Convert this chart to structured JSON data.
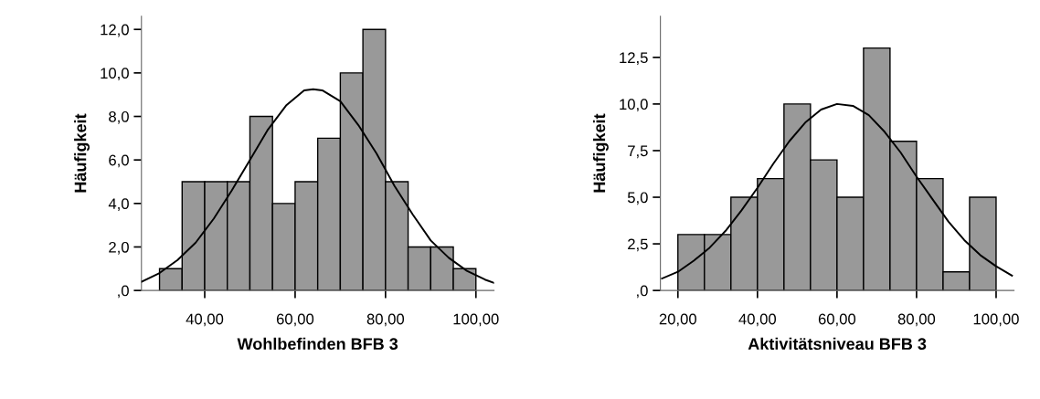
{
  "chart_data": [
    {
      "type": "histogram",
      "xlabel": "Wohlbefinden BFB 3",
      "ylabel": "Häufigkeit",
      "color": "#999999",
      "bins": [
        30,
        35,
        40,
        45,
        50,
        55,
        60,
        65,
        70,
        75,
        80,
        85,
        90,
        95,
        100
      ],
      "values": [
        1,
        5,
        5,
        5,
        8,
        4,
        5,
        7,
        10,
        12,
        5,
        2,
        2,
        1
      ],
      "series": [
        {
          "type": "line",
          "color": "#000000",
          "x": [
            26,
            30,
            34,
            38,
            42,
            46,
            50,
            54,
            58,
            62,
            64,
            66,
            70,
            74,
            78,
            82,
            86,
            90,
            94,
            98,
            102,
            104
          ],
          "values": [
            0.4,
            0.8,
            1.4,
            2.2,
            3.3,
            4.6,
            6.0,
            7.4,
            8.5,
            9.2,
            9.25,
            9.2,
            8.7,
            7.6,
            6.3,
            4.8,
            3.5,
            2.3,
            1.5,
            0.9,
            0.5,
            0.35
          ]
        }
      ],
      "xlim": [
        26,
        104
      ],
      "ylim": [
        0,
        12.6
      ],
      "xticks": [
        {
          "value": 40,
          "label": "40,00"
        },
        {
          "value": 60,
          "label": "60,00"
        },
        {
          "value": 80,
          "label": "80,00"
        },
        {
          "value": 100,
          "label": "100,00"
        }
      ],
      "yticks": [
        {
          "value": 0,
          "label": ",0"
        },
        {
          "value": 2,
          "label": "2,0"
        },
        {
          "value": 4,
          "label": "4,0"
        },
        {
          "value": 6,
          "label": "6,0"
        },
        {
          "value": 8,
          "label": "8,0"
        },
        {
          "value": 10,
          "label": "10,0"
        },
        {
          "value": 12,
          "label": "12,0"
        }
      ],
      "grid": false
    },
    {
      "type": "histogram",
      "xlabel": "Aktivitätsniveau BFB 3",
      "ylabel": "Häufigkeit",
      "color": "#999999",
      "bins": [
        20,
        26.67,
        33.33,
        40,
        46.67,
        53.33,
        60,
        66.67,
        73.33,
        80,
        86.67,
        93.33,
        100
      ],
      "values": [
        3,
        3,
        5,
        6,
        10,
        7,
        5,
        13,
        8,
        6,
        1,
        5
      ],
      "series": [
        {
          "type": "line",
          "color": "#000000",
          "x": [
            16,
            20,
            24,
            28,
            32,
            36,
            40,
            44,
            48,
            52,
            56,
            60,
            64,
            68,
            72,
            76,
            80,
            84,
            88,
            92,
            96,
            100,
            104
          ],
          "values": [
            0.64,
            1.0,
            1.6,
            2.3,
            3.2,
            4.3,
            5.5,
            6.8,
            8.0,
            9.0,
            9.7,
            10.0,
            9.9,
            9.4,
            8.5,
            7.4,
            6.1,
            4.9,
            3.7,
            2.7,
            1.9,
            1.3,
            0.8
          ]
        }
      ],
      "xlim": [
        15.6,
        104.5
      ],
      "ylim": [
        0,
        14.7
      ],
      "xticks": [
        {
          "value": 20,
          "label": "20,00"
        },
        {
          "value": 40,
          "label": "40,00"
        },
        {
          "value": 60,
          "label": "60,00"
        },
        {
          "value": 80,
          "label": "80,00"
        },
        {
          "value": 100,
          "label": "100,00"
        }
      ],
      "yticks": [
        {
          "value": 0,
          "label": ",0"
        },
        {
          "value": 2.5,
          "label": "2,5"
        },
        {
          "value": 5,
          "label": "5,0"
        },
        {
          "value": 7.5,
          "label": "7,5"
        },
        {
          "value": 10,
          "label": "10,0"
        },
        {
          "value": 12.5,
          "label": "12,5"
        }
      ],
      "grid": false
    }
  ]
}
